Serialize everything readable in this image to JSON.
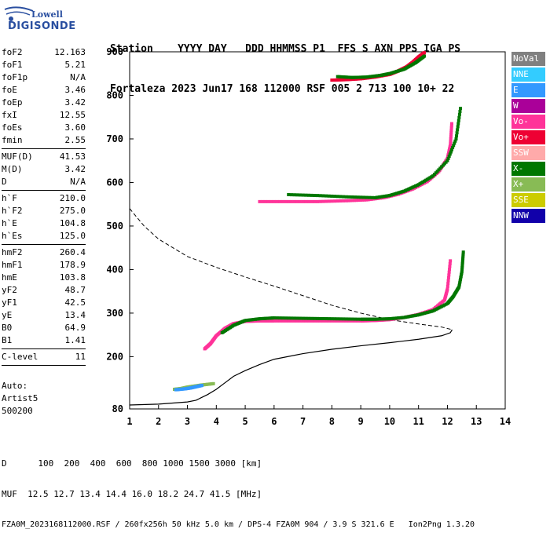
{
  "logo": {
    "line1": "Lowell",
    "line2": "DIGISONDE"
  },
  "header": {
    "line1": "Station    YYYY DAY   DDD HHMMSS P1  FFS S AXN PPS IGA PS",
    "line2": "Fortaleza 2023 Jun17 168 112000 RSF 005 2 713 100 10+ 22"
  },
  "params": [
    {
      "k": "foF2",
      "v": "12.163"
    },
    {
      "k": "foF1",
      "v": "5.21"
    },
    {
      "k": "foF1p",
      "v": "N/A"
    },
    {
      "k": "foE",
      "v": "3.46"
    },
    {
      "k": "foEp",
      "v": "3.42"
    },
    {
      "k": "fxI",
      "v": "12.55"
    },
    {
      "k": "foEs",
      "v": "3.60"
    },
    {
      "k": "fmin",
      "v": "2.55"
    },
    {
      "sep": true
    },
    {
      "k": "MUF(D)",
      "v": "41.53"
    },
    {
      "k": "M(D)",
      "v": "3.42"
    },
    {
      "k": "D",
      "v": "N/A"
    },
    {
      "sep": true
    },
    {
      "k": "h`F",
      "v": "210.0"
    },
    {
      "k": "h`F2",
      "v": "275.0"
    },
    {
      "k": "h`E",
      "v": "104.8"
    },
    {
      "k": "h`Es",
      "v": "125.0"
    },
    {
      "sep": true
    },
    {
      "k": "hmF2",
      "v": "260.4"
    },
    {
      "k": "hmF1",
      "v": "178.9"
    },
    {
      "k": "hmE",
      "v": "103.8"
    },
    {
      "k": "yF2",
      "v": "48.7"
    },
    {
      "k": "yF1",
      "v": "42.5"
    },
    {
      "k": "yE",
      "v": "13.4"
    },
    {
      "k": "B0",
      "v": "64.9"
    },
    {
      "k": "B1",
      "v": "1.41"
    },
    {
      "sep": true
    },
    {
      "k": "C-level",
      "v": "11"
    },
    {
      "sep": true
    }
  ],
  "auto": {
    "line1": "Auto:",
    "line2": "Artist5",
    "line3": "500200"
  },
  "legend": [
    {
      "label": "NoVal",
      "color": "#808080"
    },
    {
      "label": "NNE",
      "color": "#33ccff"
    },
    {
      "label": "E",
      "color": "#3399ff"
    },
    {
      "label": "W",
      "color": "#aa0099"
    },
    {
      "label": "Vo-",
      "color": "#ff3399"
    },
    {
      "label": "Vo+",
      "color": "#ee0033"
    },
    {
      "label": "SSW",
      "color": "#ffaaaa"
    },
    {
      "label": "X-",
      "color": "#007700"
    },
    {
      "label": "X+",
      "color": "#88bb55"
    },
    {
      "label": "SSE",
      "color": "#cccc00"
    },
    {
      "label": "NNW",
      "color": "#1100aa"
    }
  ],
  "footer": {
    "line1": "D      100  200  400  600  800 1000 1500 3000 [km]",
    "line2": "MUF  12.5 12.7 13.4 14.4 16.0 18.2 24.7 41.5 [MHz]",
    "line3": "FZA0M_2023168112000.RSF / 260fx256h 50 kHz 5.0 km / DPS-4 FZA0M 904 / 3.9 S 321.6 E   Ion2Png 1.3.20"
  },
  "chart_data": {
    "type": "scatter",
    "xlim": [
      1,
      14
    ],
    "ylim": [
      80,
      900
    ],
    "xticks": [
      1,
      2,
      3,
      4,
      5,
      6,
      7,
      8,
      9,
      10,
      11,
      12,
      13,
      14
    ],
    "yticks": [
      80,
      200,
      300,
      400,
      500,
      600,
      700,
      800,
      900
    ],
    "grid": false,
    "legend_position": "right",
    "profile_line": {
      "x": [
        0.8,
        2.0,
        3.0,
        3.3,
        3.7,
        4.0,
        4.3,
        4.6,
        5.0,
        5.5,
        6.0,
        7.0,
        8.0,
        9.0,
        10.0,
        11.0,
        11.8,
        12.1,
        12.163
      ],
      "y": [
        89,
        91,
        96,
        100,
        113,
        125,
        140,
        155,
        168,
        182,
        194,
        207,
        217,
        225,
        232,
        240,
        248,
        255,
        262
      ]
    },
    "dashed_line": {
      "x": [
        1.0,
        1.5,
        2.0,
        2.5,
        3.0,
        4.0,
        5.0,
        6.0,
        7.0,
        8.0,
        9.0,
        10.0,
        11.0,
        11.8,
        12.163
      ],
      "y": [
        540,
        500,
        470,
        450,
        430,
        405,
        383,
        362,
        340,
        318,
        300,
        285,
        275,
        268,
        262
      ]
    },
    "traces": [
      {
        "series": "Vo-",
        "x": [
          3.6,
          3.8,
          4.0,
          4.3,
          4.6,
          5.0,
          5.5,
          6.0,
          7.0,
          8.0,
          9.0,
          9.5,
          10.0,
          10.5,
          11.0,
          11.5,
          11.9,
          12.0,
          12.1
        ],
        "y": [
          218,
          230,
          248,
          265,
          276,
          281,
          282,
          282,
          282,
          282,
          282,
          283,
          285,
          290,
          297,
          308,
          330,
          355,
          420
        ]
      },
      {
        "series": "X-",
        "x": [
          4.2,
          4.6,
          5.0,
          5.5,
          6.0,
          7.0,
          8.0,
          9.0,
          9.5,
          10.0,
          10.5,
          11.0,
          11.5,
          12.0,
          12.2,
          12.4,
          12.5,
          12.55
        ],
        "y": [
          255,
          272,
          283,
          287,
          289,
          288,
          287,
          286,
          286,
          287,
          290,
          296,
          305,
          322,
          338,
          360,
          395,
          440
        ]
      },
      {
        "series": "Vo-",
        "x": [
          5.5,
          6.5,
          7.5,
          8.5,
          9.2,
          9.8,
          10.3,
          10.8,
          11.3,
          11.7,
          12.0,
          12.1,
          12.15
        ],
        "y": [
          556,
          556,
          556,
          558,
          560,
          565,
          573,
          585,
          602,
          625,
          655,
          685,
          735
        ]
      },
      {
        "series": "X-",
        "x": [
          6.5,
          7.5,
          8.5,
          9.5,
          10.0,
          10.5,
          11.0,
          11.5,
          12.0,
          12.3,
          12.45
        ],
        "y": [
          572,
          570,
          567,
          565,
          570,
          580,
          595,
          615,
          650,
          700,
          770
        ]
      },
      {
        "series": "Vo+",
        "x": [
          8.0,
          8.5,
          9.0,
          9.5,
          10.0,
          10.3,
          10.6,
          10.8,
          11.0,
          11.2
        ],
        "y": [
          835,
          836,
          838,
          842,
          848,
          856,
          866,
          876,
          888,
          898
        ]
      },
      {
        "series": "X-",
        "x": [
          8.2,
          8.7,
          9.2,
          9.7,
          10.0,
          10.5,
          10.9,
          11.2
        ],
        "y": [
          843,
          841,
          842,
          846,
          850,
          860,
          875,
          890
        ]
      },
      {
        "series": "X+",
        "x": [
          2.55,
          2.8,
          3.0,
          3.2,
          3.5,
          3.9
        ],
        "y": [
          125,
          127,
          130,
          132,
          135,
          138
        ]
      },
      {
        "series": "E",
        "x": [
          2.6,
          2.9,
          3.1,
          3.3,
          3.5
        ],
        "y": [
          124,
          126,
          128,
          131,
          134
        ]
      }
    ]
  }
}
